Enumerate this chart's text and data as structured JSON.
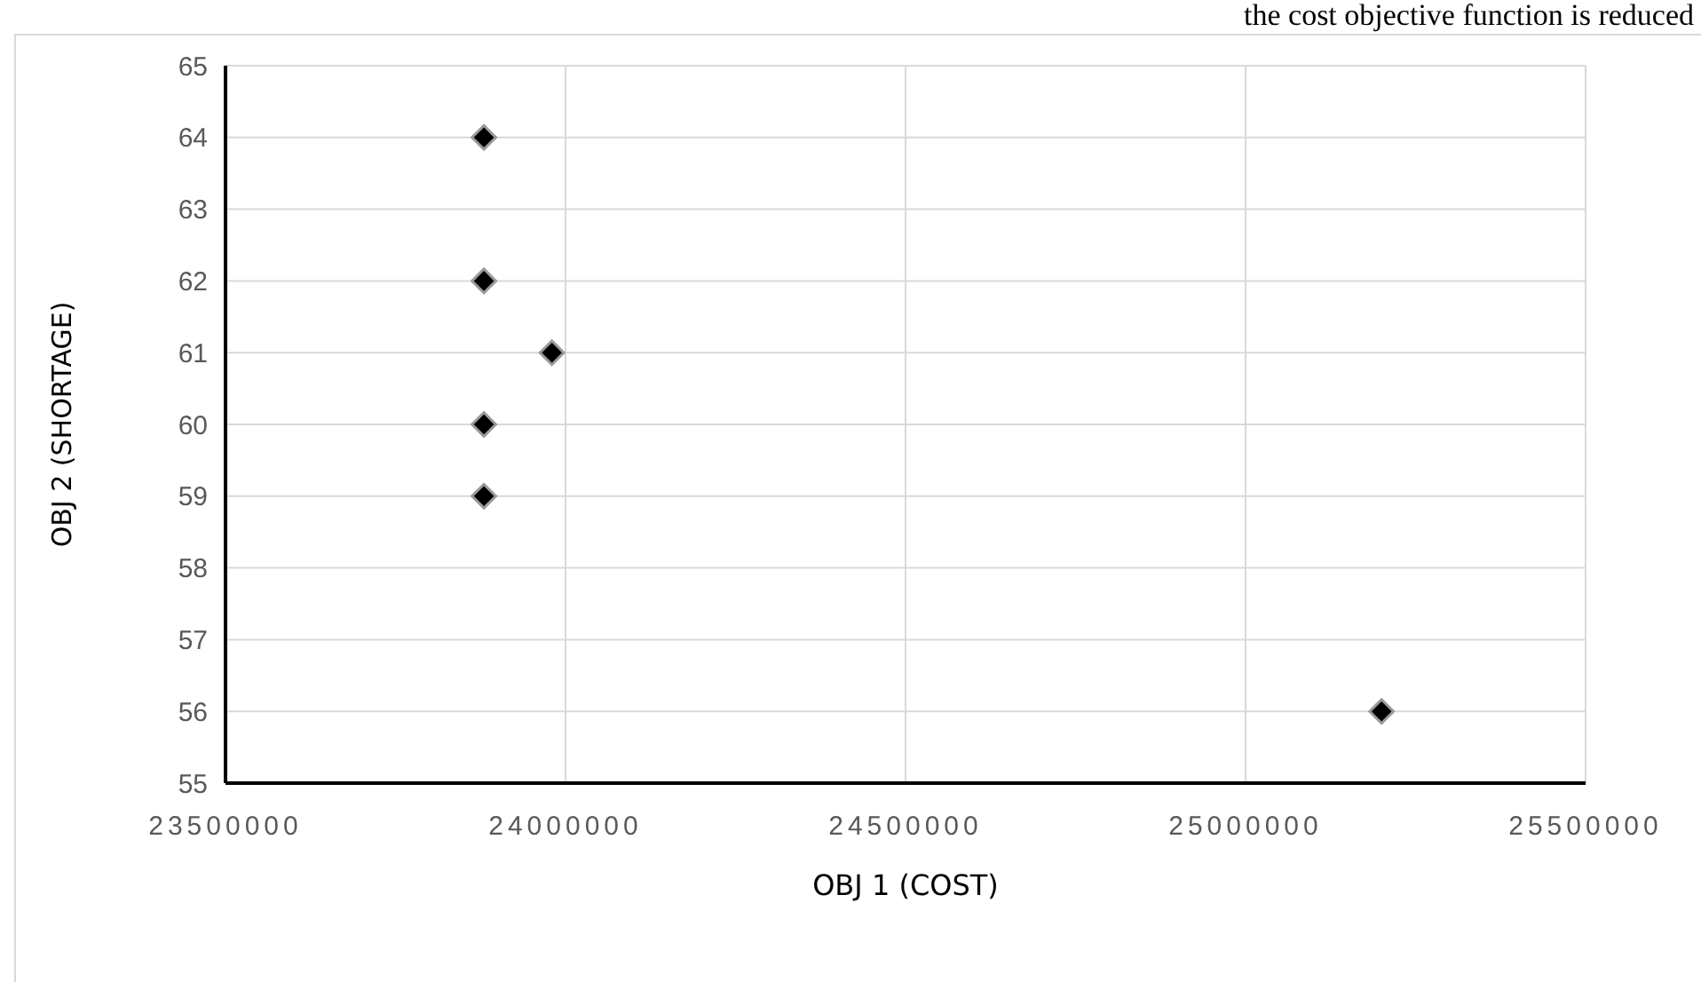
{
  "chart_data": {
    "type": "scatter",
    "xlabel": "OBJ 1 (COST)",
    "ylabel": "OBJ 2 (SHORTAGE)",
    "annotations": [
      "the cost objective function is reduced"
    ],
    "x": [
      23880000,
      23880000,
      23980000,
      23880000,
      23880000,
      25200000
    ],
    "values": [
      64,
      62,
      61,
      60,
      59,
      56
    ],
    "color": "#000000",
    "marker": "diamond",
    "grid": true,
    "xlim": [
      23500000,
      25500000
    ],
    "xticks": [
      23500000,
      24000000,
      24500000,
      25000000,
      25500000
    ],
    "ylim": [
      55,
      65
    ],
    "yticks": [
      55,
      56,
      57,
      58,
      59,
      60,
      61,
      62,
      63,
      64,
      65
    ]
  }
}
